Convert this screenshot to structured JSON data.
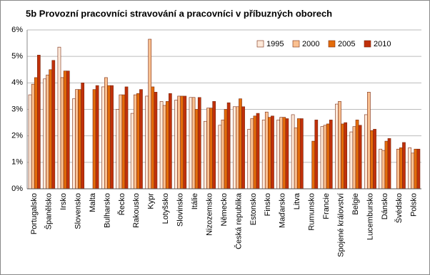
{
  "chart_data": {
    "type": "bar",
    "title": "5b Provozní pracovníci stravování a pracovníci v příbuzných oborech",
    "categories": [
      "Portugalsko",
      "Španělsko",
      "Irsko",
      "Slovensko",
      "Malta",
      "Bulharsko",
      "Řecko",
      "Rakousko",
      "Kypr",
      "Lotyšsko",
      "Slovinsko",
      "Itálie",
      "Nizozemsko",
      "Německo",
      "Česká republika",
      "Estonsko",
      "Finsko",
      "Maďarsko",
      "Litva",
      "Rumunsko",
      "Francie",
      "Spojené království",
      "Belgie",
      "Lucembursko",
      "Dánsko",
      "Švédsko",
      "Polsko"
    ],
    "series": [
      {
        "name": "1995",
        "color": "#fde9d9",
        "values": [
          3.55,
          4.15,
          5.35,
          3.4,
          null,
          3.85,
          3.0,
          2.85,
          3.5,
          3.3,
          3.35,
          3.45,
          2.55,
          2.4,
          3.1,
          2.25,
          2.6,
          2.6,
          2.8,
          null,
          2.35,
          3.2,
          2.15,
          2.8,
          1.5,
          null,
          1.55
        ]
      },
      {
        "name": "2000",
        "color": "#fac090",
        "values": [
          3.95,
          4.3,
          4.2,
          3.75,
          null,
          4.2,
          3.55,
          3.55,
          5.65,
          3.15,
          3.5,
          3.45,
          3.05,
          2.6,
          3.1,
          2.65,
          2.9,
          2.7,
          2.3,
          null,
          2.4,
          3.3,
          2.35,
          3.65,
          1.45,
          1.5,
          1.35
        ]
      },
      {
        "name": "2005",
        "color": "#e46c0a",
        "values": [
          4.2,
          4.5,
          4.45,
          3.75,
          3.75,
          3.9,
          3.55,
          3.6,
          3.85,
          3.3,
          3.5,
          3.0,
          3.05,
          3.0,
          3.4,
          2.75,
          2.7,
          2.7,
          2.65,
          1.8,
          2.45,
          2.45,
          2.6,
          2.2,
          1.8,
          1.55,
          1.5
        ]
      },
      {
        "name": "2010",
        "color": "#c0300a",
        "values": [
          5.05,
          4.85,
          4.45,
          4.0,
          3.9,
          3.9,
          3.85,
          3.75,
          3.65,
          3.6,
          3.5,
          3.45,
          3.3,
          3.25,
          3.1,
          2.85,
          2.75,
          2.65,
          2.65,
          2.6,
          2.6,
          2.5,
          2.4,
          2.25,
          1.9,
          1.75,
          1.5
        ]
      }
    ],
    "ylim": [
      0,
      6
    ],
    "yticks": [
      {
        "value": 0,
        "label": "0%"
      },
      {
        "value": 1,
        "label": "1%"
      },
      {
        "value": 2,
        "label": "2%"
      },
      {
        "value": 3,
        "label": "3%"
      },
      {
        "value": 4,
        "label": "4%"
      },
      {
        "value": 5,
        "label": "5%"
      },
      {
        "value": 6,
        "label": "6%"
      }
    ],
    "grid": true,
    "legend": "top-right"
  }
}
